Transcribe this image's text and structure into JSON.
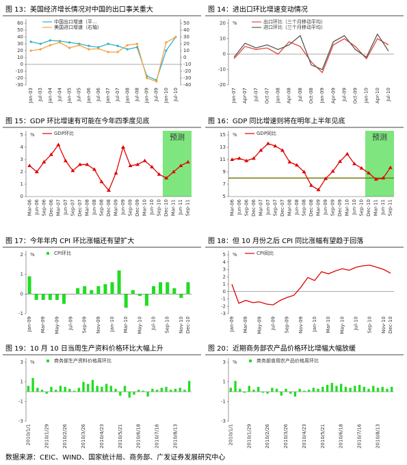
{
  "chart_data": [
    {
      "type": "line",
      "title": "图 13：美国经济增长情况对中国的出口事关重大",
      "categories": [
        "Jan-03",
        "Jul-03",
        "Jan-04",
        "Jul-04",
        "Jan-05",
        "Jul-05",
        "Jan-06",
        "Jul-06",
        "Jan-07",
        "Jul-07",
        "Jan-08",
        "Jul-08",
        "Jan-09",
        "Jul-09",
        "Jan-10",
        "Jul-10"
      ],
      "series": [
        {
          "name": "中国出口增速（平…",
          "color": "#2ab0c5",
          "marker": "circle",
          "values": [
            33,
            30,
            35,
            34,
            32,
            30,
            27,
            25,
            30,
            27,
            22,
            25,
            -17,
            -23,
            20,
            40
          ]
        },
        {
          "name": "美国进口增速（右轴）",
          "color": "#f5a040",
          "marker": "circle",
          "axis": "y2",
          "values": [
            10,
            12,
            18,
            22,
            14,
            18,
            12,
            13,
            8,
            8,
            18,
            20,
            -30,
            -35,
            22,
            30
          ]
        }
      ],
      "ylim": [
        -30,
        60
      ],
      "yticks": [
        -30,
        -20,
        -10,
        0,
        10,
        20,
        30,
        40,
        50,
        60
      ],
      "y2lim": [
        -40,
        50
      ],
      "y2ticks": [
        -40,
        -30,
        -20,
        -10,
        0,
        10,
        20,
        30,
        40,
        50
      ]
    },
    {
      "type": "line",
      "title": "图 14：进出口环比增速变动情况",
      "y_unit": "%",
      "categories": [
        "Jan-07",
        "Apr-07",
        "Jul-07",
        "Oct-07",
        "Jan-08",
        "Apr-08",
        "Jul-08",
        "Oct-08",
        "Jan-09",
        "Apr-09",
        "Jul-09",
        "Oct-09",
        "Jan-10",
        "Apr-10",
        "Jul-10"
      ],
      "series": [
        {
          "name": "出口环比（三个月移动平均）",
          "color": "#e0453a",
          "values": [
            -3,
            5,
            3,
            4,
            0,
            8,
            5,
            -5,
            -12,
            6,
            10,
            5,
            -3,
            10,
            6
          ]
        },
        {
          "name": "进口环比（三个月移动平均）",
          "color": "#555555",
          "values": [
            -2,
            7,
            4,
            6,
            3,
            6,
            12,
            -7,
            -10,
            8,
            12,
            3,
            -2,
            13,
            2
          ]
        }
      ],
      "ylim": [
        -20,
        20
      ],
      "yticks": [
        -20,
        -10,
        0,
        10,
        20
      ]
    },
    {
      "type": "line",
      "title": "图 15：GDP 环比增速有可能在今年四季度见底",
      "y_unit": "%",
      "forecast_label": "预测",
      "forecast_start": "Dec-10",
      "categories": [
        "Mar-06",
        "Jun-06",
        "Sep-06",
        "Dec-06",
        "Mar-07",
        "Jun-07",
        "Sep-07",
        "Dec-07",
        "Mar-08",
        "Jun-08",
        "Sep-08",
        "Dec-08",
        "Mar-09",
        "Jun-09",
        "Sep-09",
        "Dec-09",
        "Mar-10",
        "Jun-10",
        "Sep-10",
        "Dec-10",
        "Mar-11",
        "Jun-11",
        "Sep-11"
      ],
      "series": [
        {
          "name": "GDP环比",
          "color": "#e00000",
          "marker": "triangle",
          "values": [
            2.5,
            2.0,
            2.8,
            3.4,
            4.2,
            2.9,
            2.1,
            2.6,
            2.6,
            2.2,
            1.2,
            0.5,
            1.9,
            4.0,
            2.5,
            2.6,
            2.9,
            2.4,
            1.8,
            1.5,
            2.0,
            2.5,
            2.8
          ]
        }
      ],
      "ylim": [
        0,
        5
      ],
      "yticks": [
        0,
        1,
        2,
        3,
        4,
        5
      ]
    },
    {
      "type": "line",
      "title": "图 16：GDP 同比增速则将在明年上半年见底",
      "y_unit": "%",
      "forecast_label": "预测",
      "forecast_start": "Dec-10",
      "reference_line": 8,
      "reference_color": "#7a7a10",
      "categories": [
        "Mar-06",
        "Jun-06",
        "Sep-06",
        "Dec-06",
        "Mar-07",
        "Jun-07",
        "Sep-07",
        "Dec-07",
        "Mar-08",
        "Jun-08",
        "Sep-08",
        "Dec-08",
        "Mar-09",
        "Jun-09",
        "Sep-09",
        "Dec-09",
        "Mar-10",
        "Jun-10",
        "Sep-10",
        "Dec-10",
        "Mar-11",
        "Jun-11",
        "Sep-11"
      ],
      "series": [
        {
          "name": "GDP同比",
          "color": "#e00000",
          "marker": "triangle",
          "values": [
            11.0,
            11.2,
            10.8,
            11.2,
            12.5,
            13.6,
            13.2,
            12.5,
            10.6,
            10.1,
            9.0,
            6.8,
            6.1,
            7.9,
            9.1,
            10.7,
            11.9,
            10.3,
            9.6,
            8.8,
            7.8,
            8.0,
            9.7
          ]
        }
      ],
      "ylim": [
        5,
        15
      ],
      "yticks": [
        5,
        7,
        9,
        11,
        13,
        15
      ]
    },
    {
      "type": "bar",
      "title": "图 17：今年年内 CPI 环比涨幅还有望扩大",
      "y_unit": "%",
      "categories": [
        "Jan-09",
        null,
        "Mar-09",
        null,
        "May-09",
        null,
        "Jul-09",
        null,
        "Sep-09",
        null,
        "Nov-09",
        null,
        "Jan-10",
        null,
        "Mar-10",
        null,
        "May-10",
        null,
        "Jul-10",
        null,
        "Sep-10",
        null,
        "Nov-10",
        "Dec-10"
      ],
      "series": [
        {
          "name": "CPI环比",
          "color": "#22dd22",
          "values": [
            0.9,
            -0.3,
            -0.3,
            -0.3,
            -0.3,
            -0.5,
            0.0,
            0.3,
            0.4,
            0.2,
            0.4,
            0.5,
            0.6,
            1.2,
            -0.7,
            0.2,
            -0.1,
            -0.6,
            0.4,
            0.6,
            0.6,
            0.3,
            -0.2,
            0.6
          ]
        }
      ],
      "ylim": [
        -1,
        2
      ],
      "yticks": [
        -1,
        0,
        1,
        2
      ]
    },
    {
      "type": "line",
      "title": "图 18：但 10 月份之后 CPI 同比涨幅有望趋于回落",
      "y_unit": "%",
      "categories": [
        "Jan-09",
        null,
        "Mar-09",
        null,
        "May-09",
        null,
        "Jul-09",
        null,
        "Sep-09",
        null,
        "Nov-09",
        null,
        "Jan-10",
        null,
        "Mar-10",
        null,
        "May-10",
        null,
        "Jul-10",
        null,
        "Sep-10",
        null,
        "Nov-10",
        "Dec-10"
      ],
      "series": [
        {
          "name": "CPI同比",
          "color": "#e00000",
          "values": [
            1.0,
            -1.6,
            -1.2,
            -1.5,
            -1.4,
            -1.7,
            -1.8,
            -1.2,
            -0.8,
            -0.5,
            0.6,
            1.9,
            1.5,
            2.7,
            2.4,
            2.8,
            3.1,
            2.9,
            3.3,
            3.5,
            3.6,
            3.3,
            3.0,
            2.5
          ]
        }
      ],
      "ylim": [
        -3,
        5
      ],
      "yticks": [
        -3,
        -2,
        -1,
        0,
        1,
        2,
        3,
        4,
        5
      ]
    },
    {
      "type": "bar",
      "title": "图 19：10 月 10 日当周生产资料价格环比大幅上升",
      "y_unit": "%",
      "categories": [
        "2010/1/1",
        null,
        null,
        null,
        "2010/1/29",
        null,
        null,
        null,
        "2010/2/26",
        null,
        null,
        null,
        "2010/3/26",
        null,
        null,
        null,
        "2010/4/23",
        null,
        null,
        null,
        "2010/5/21",
        null,
        null,
        null,
        "2010/6/18",
        null,
        null,
        null,
        "2010/7/16",
        null,
        null,
        null,
        "2010/8/13",
        null,
        null,
        null
      ],
      "series": [
        {
          "name": "商务部生产资料价格周环比",
          "color": "#22dd22",
          "values": [
            0.6,
            1.4,
            0.4,
            0.2,
            -0.2,
            0.5,
            0.2,
            0.6,
            0.5,
            0.3,
            0.1,
            0.4,
            1.0,
            0.8,
            1.2,
            0.6,
            0.5,
            0.8,
            0.6,
            0.3,
            -0.4,
            0.6,
            -0.6,
            -0.3,
            0.2,
            0.1,
            -0.5,
            0.3,
            0.2,
            0.4,
            0.5,
            0.2,
            0.3,
            0.4,
            0.2,
            1.1
          ]
        }
      ],
      "ylim": [
        -3,
        3
      ],
      "yticks": [
        -3,
        -1,
        1,
        3
      ]
    },
    {
      "type": "bar",
      "title": "图 20：近期商务部农产品价格环比增幅大幅放缓",
      "y_unit": "%",
      "categories": [
        "2010/1/1",
        null,
        null,
        null,
        "2010/1/29",
        null,
        null,
        null,
        "2010/2/26",
        null,
        null,
        null,
        "2010/3/26",
        null,
        null,
        null,
        "2010/4/23",
        null,
        null,
        null,
        "2010/5/21",
        null,
        null,
        null,
        "2010/6/18",
        null,
        null,
        null,
        "2010/7/16",
        null,
        null,
        null,
        "2010/8/13",
        null,
        null,
        null
      ],
      "series": [
        {
          "name": "商务部食用农产品价格周环比",
          "color": "#22dd22",
          "values": [
            0.4,
            1.1,
            0.3,
            -0.1,
            0.6,
            0.2,
            0.5,
            -0.1,
            -0.2,
            0.4,
            0.3,
            -0.4,
            0.3,
            -0.2,
            -0.5,
            0.3,
            0.1,
            0.2,
            0.4,
            0.3,
            0.5,
            0.7,
            0.9,
            0.6,
            0.8,
            0.5,
            0.4,
            0.6,
            0.7,
            0.5,
            0.3,
            0.6,
            0.4,
            0.5,
            0.3,
            0.5
          ]
        }
      ],
      "ylim": [
        -3,
        3
      ],
      "yticks": [
        -3,
        -1,
        1,
        3
      ]
    }
  ],
  "source": "数据来源：CEIC、WIND、国家统计局、商务部、广发证券发展研究中心"
}
